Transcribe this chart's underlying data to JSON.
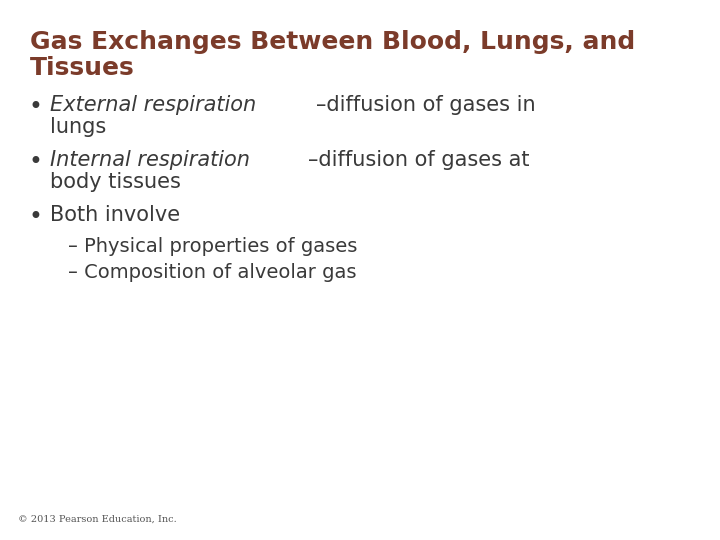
{
  "title_line1": "Gas Exchanges Between Blood, Lungs, and",
  "title_line2": "Tissues",
  "title_color": "#7B3B2A",
  "title_fontsize": 18,
  "background_color": "#FFFFFF",
  "bullet_color": "#3A3A3A",
  "bullet_fontsize": 15,
  "sub_bullet_fontsize": 14,
  "copyright_text": "© 2013 Pearson Education, Inc.",
  "copyright_fontsize": 7,
  "bullet1_italic": "External respiration",
  "bullet1_normal": "–diffusion of gases in",
  "bullet1_cont": "lungs",
  "bullet2_italic": "Internal respiration",
  "bullet2_normal": "–diffusion of gases at",
  "bullet2_cont": "body tissues",
  "bullet3": "Both involve",
  "sub1": "– Physical properties of gases",
  "sub2": "– Composition of alveolar gas",
  "bullet_symbol": "•"
}
